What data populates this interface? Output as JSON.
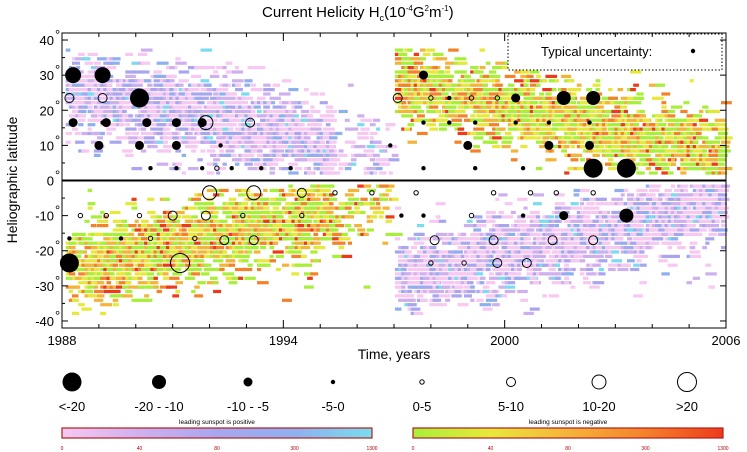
{
  "chart_data": {
    "type": "heatmap",
    "title": "Current Helicity H",
    "title_sub": "c",
    "title_units_parts": [
      "(10",
      "-4",
      "G",
      "2",
      "m",
      "-1",
      ")"
    ],
    "xlabel": "Time, years",
    "ylabel": "Heliographic latitude",
    "xlim": [
      1988,
      2006
    ],
    "ylim": [
      -42,
      42
    ],
    "x_ticks": [
      "1988",
      "1994",
      "2000",
      "2006"
    ],
    "x_tick_values": [
      1988,
      1994,
      2000,
      2006
    ],
    "y_ticks": [
      "40",
      "30",
      "20",
      "10",
      "0",
      "-10",
      "-20",
      "-30",
      "-40"
    ],
    "y_tick_values": [
      40,
      30,
      20,
      10,
      0,
      -10,
      -20,
      -30,
      -40
    ],
    "degree_symbol": "°",
    "grid": false,
    "equator_line": true,
    "typical_uncertainty_label": "Typical uncertainty:",
    "colors": {
      "positive_scale": [
        "#f6c8f2",
        "#cfb0ef",
        "#a8a6ef",
        "#8fb0ef",
        "#79dcef"
      ],
      "negative_scale": [
        "#a8ef3a",
        "#e8e83a",
        "#f4b43a",
        "#f4822a",
        "#ee3a1a"
      ],
      "colorbar_frame": "#b02020"
    },
    "size_legend": [
      {
        "label": "<-20",
        "radius": 9.5,
        "filled": true
      },
      {
        "label": "-20 - -10",
        "radius": 7,
        "filled": true
      },
      {
        "label": "-10 - -5",
        "radius": 4.5,
        "filled": true
      },
      {
        "label": "-5-0",
        "radius": 2.2,
        "filled": true
      },
      {
        "label": "0-5",
        "radius": 2.2,
        "filled": false
      },
      {
        "label": "5-10",
        "radius": 4.5,
        "filled": false
      },
      {
        "label": "10-20",
        "radius": 7,
        "filled": false
      },
      {
        "label": ">20",
        "radius": 9.5,
        "filled": false
      }
    ],
    "colorbars": [
      {
        "caption": "leading sunspot is positive",
        "ticks": [
          "0",
          "40",
          "80",
          "300",
          "1300"
        ],
        "scale": "positive"
      },
      {
        "caption": "leading sunspot is negative",
        "ticks": [
          "0",
          "40",
          "80",
          "300",
          "1300"
        ],
        "scale": "negative"
      }
    ],
    "circles_filled": [
      [
        1988.3,
        30,
        8
      ],
      [
        1989.1,
        30,
        8
      ],
      [
        1990.1,
        23.5,
        9.5
      ],
      [
        1997.8,
        30,
        4.5
      ],
      [
        2000.3,
        23.5,
        4.5
      ],
      [
        2001.6,
        23.5,
        7
      ],
      [
        2002.4,
        23.5,
        7
      ],
      [
        1988.3,
        16.5,
        4.5
      ],
      [
        1989.2,
        16.5,
        4.5
      ],
      [
        1990.3,
        16.5,
        4.5
      ],
      [
        1991.1,
        16.5,
        4.5
      ],
      [
        1991.8,
        16.5,
        4.5
      ],
      [
        1989,
        10,
        4.5
      ],
      [
        1990.1,
        10,
        4.5
      ],
      [
        1991.1,
        10,
        4.5
      ],
      [
        1992.3,
        10,
        2.2
      ],
      [
        1999,
        10,
        4.5
      ],
      [
        2001.2,
        10,
        4.5
      ],
      [
        2002.3,
        10,
        4.5
      ],
      [
        2002.4,
        3.5,
        9.5
      ],
      [
        2003.3,
        3.5,
        9.5
      ],
      [
        2001.6,
        -10,
        4.5
      ],
      [
        2003.3,
        -10,
        7
      ],
      [
        1988.2,
        -23.5,
        9.5
      ],
      [
        1989.1,
        16.5,
        2.2
      ],
      [
        1990.4,
        3.5,
        2.2
      ],
      [
        1991.1,
        3.5,
        2.2
      ],
      [
        1991.8,
        3.5,
        2.2
      ],
      [
        1992.6,
        3.5,
        2.2
      ],
      [
        1993.4,
        3.5,
        2.2
      ],
      [
        1994.2,
        3.5,
        2.2
      ],
      [
        1997.8,
        16.5,
        2.2
      ],
      [
        1998.5,
        16.5,
        2.2
      ],
      [
        1999.2,
        16.5,
        2.2
      ],
      [
        2000.3,
        16.5,
        2.2
      ],
      [
        2001.2,
        16.5,
        2.2
      ],
      [
        2002.3,
        16.5,
        2.2
      ],
      [
        1997.8,
        3.5,
        2.2
      ],
      [
        1999.2,
        3.5,
        2.2
      ],
      [
        2000.5,
        3.5,
        2.2
      ],
      [
        1997.2,
        -10,
        2.2
      ],
      [
        1997.8,
        -10,
        2.2
      ],
      [
        1988.2,
        -16.5,
        2.2
      ],
      [
        1989.6,
        -16.5,
        2.2
      ],
      [
        2000.5,
        -10,
        2.2
      ],
      [
        1998.5,
        23.5,
        2.2
      ],
      [
        1996.9,
        10,
        2.2
      ]
    ],
    "circles_open": [
      [
        1988.2,
        23.5,
        4.5
      ],
      [
        1989.1,
        23.5,
        4.5
      ],
      [
        1991.9,
        16.5,
        7
      ],
      [
        1993.1,
        16.5,
        4.5
      ],
      [
        1997.1,
        23.5,
        4.5
      ],
      [
        1998,
        23.5,
        2.2
      ],
      [
        1999.1,
        23.5,
        2.2
      ],
      [
        1999.8,
        23.5,
        2.2
      ],
      [
        1992,
        -3.5,
        7
      ],
      [
        1993.2,
        -3.5,
        7
      ],
      [
        1994.5,
        -3.5,
        4.5
      ],
      [
        1995.4,
        -3.5,
        2.2
      ],
      [
        1996.4,
        -3.5,
        2.2
      ],
      [
        1991,
        -10,
        4.5
      ],
      [
        1991.9,
        -10,
        4.5
      ],
      [
        1992.9,
        -10,
        2.2
      ],
      [
        1994.5,
        -10,
        2.2
      ],
      [
        1998.1,
        -17,
        4.5
      ],
      [
        1999.7,
        -17,
        4.5
      ],
      [
        2001.3,
        -17,
        4.5
      ],
      [
        2002.4,
        -17,
        4.5
      ],
      [
        1991.2,
        -23.5,
        9.5
      ],
      [
        1992.4,
        -17,
        4.5
      ],
      [
        1993.2,
        -17,
        4.5
      ],
      [
        1998,
        -23.5,
        2.2
      ],
      [
        1998.9,
        -23.5,
        2.2
      ],
      [
        1999.8,
        -23.5,
        4.5
      ],
      [
        2000.6,
        -23.5,
        4.5
      ],
      [
        1988.5,
        -10,
        2.2
      ],
      [
        1989.2,
        -10,
        2.2
      ],
      [
        1990.1,
        -10,
        2.2
      ],
      [
        1991.6,
        -16.5,
        2.2
      ],
      [
        1990.4,
        -16.5,
        2.2
      ],
      [
        1999.1,
        -10,
        2.2
      ],
      [
        1999.7,
        -3.5,
        2.2
      ],
      [
        2000.7,
        -3.5,
        2.2
      ],
      [
        2001.4,
        -3.5,
        2.2
      ],
      [
        2002.4,
        -3.5,
        2.2
      ],
      [
        1992.2,
        3.5,
        2.2
      ],
      [
        1997.6,
        -3.5,
        2.2
      ]
    ]
  }
}
